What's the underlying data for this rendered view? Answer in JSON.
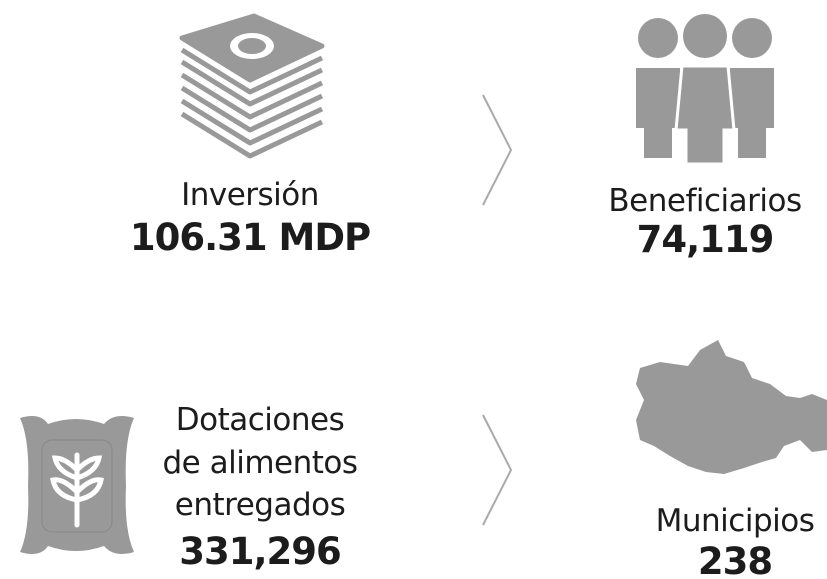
{
  "items": [
    {
      "label": [
        "Inversión"
      ],
      "value": "106.31 MDP"
    },
    {
      "label": [
        "Beneficiarios"
      ],
      "value": "74,119"
    },
    {
      "label": [
        "Dotaciones",
        "de alimentos",
        "entregados"
      ],
      "value": "331,296"
    },
    {
      "label": [
        "Municipios"
      ],
      "value": "238"
    }
  ]
}
